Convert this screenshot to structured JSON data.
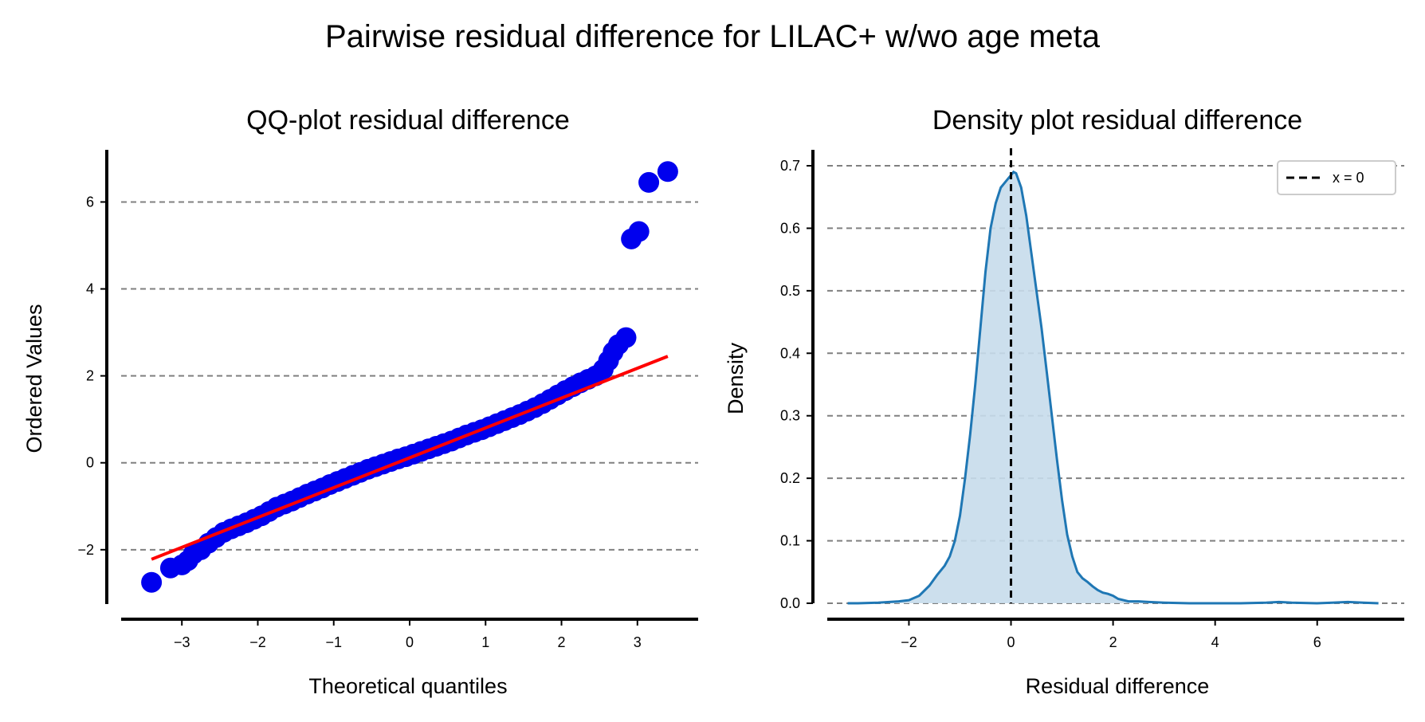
{
  "figure": {
    "suptitle": "Pairwise residual difference for LILAC+ w/wo age meta"
  },
  "chart_data": [
    {
      "type": "scatter",
      "title": "QQ-plot residual difference",
      "xlabel": "Theoretical quantiles",
      "ylabel": "Ordered Values",
      "xlim": [
        -3.8,
        3.8
      ],
      "ylim": [
        -3.25,
        7.2
      ],
      "xticks": [
        -3,
        -2,
        -1,
        0,
        1,
        2,
        3
      ],
      "yticks": [
        -2,
        0,
        2,
        4,
        6
      ],
      "xtick_labels": [
        "−3",
        "−2",
        "−1",
        "0",
        "1",
        "2",
        "3"
      ],
      "ytick_labels": [
        "−2",
        "0",
        "2",
        "4",
        "6"
      ],
      "grid": "y, dashed",
      "colors": {
        "points": "#0000ee",
        "fit_line": "#ff0000",
        "grid": "#808080"
      },
      "fit_line": {
        "x": [
          -3.4,
          3.4
        ],
        "y": [
          -2.22,
          2.45
        ]
      },
      "series": [
        {
          "values": [
            [
              -3.4,
              -2.75
            ],
            [
              -3.15,
              -2.42
            ],
            [
              -3.0,
              -2.35
            ],
            [
              -2.92,
              -2.25
            ],
            [
              -2.85,
              -2.1
            ],
            [
              -2.75,
              -2.0
            ],
            [
              -2.65,
              -1.85
            ],
            [
              -2.55,
              -1.72
            ],
            [
              -2.45,
              -1.6
            ],
            [
              -2.35,
              -1.52
            ],
            [
              -2.25,
              -1.45
            ],
            [
              -2.15,
              -1.38
            ],
            [
              -2.05,
              -1.3
            ],
            [
              -1.95,
              -1.22
            ],
            [
              -1.85,
              -1.12
            ],
            [
              -1.75,
              -1.02
            ],
            [
              -1.65,
              -0.95
            ],
            [
              -1.55,
              -0.88
            ],
            [
              -1.45,
              -0.8
            ],
            [
              -1.35,
              -0.72
            ],
            [
              -1.25,
              -0.65
            ],
            [
              -1.15,
              -0.58
            ],
            [
              -1.05,
              -0.5
            ],
            [
              -0.95,
              -0.43
            ],
            [
              -0.85,
              -0.36
            ],
            [
              -0.75,
              -0.29
            ],
            [
              -0.65,
              -0.22
            ],
            [
              -0.55,
              -0.15
            ],
            [
              -0.45,
              -0.09
            ],
            [
              -0.35,
              -0.03
            ],
            [
              -0.25,
              0.03
            ],
            [
              -0.15,
              0.09
            ],
            [
              -0.05,
              0.14
            ],
            [
              0.05,
              0.2
            ],
            [
              0.15,
              0.26
            ],
            [
              0.25,
              0.32
            ],
            [
              0.35,
              0.38
            ],
            [
              0.45,
              0.44
            ],
            [
              0.55,
              0.5
            ],
            [
              0.65,
              0.57
            ],
            [
              0.75,
              0.64
            ],
            [
              0.85,
              0.7
            ],
            [
              0.95,
              0.76
            ],
            [
              1.05,
              0.83
            ],
            [
              1.15,
              0.9
            ],
            [
              1.25,
              0.97
            ],
            [
              1.35,
              1.04
            ],
            [
              1.45,
              1.11
            ],
            [
              1.55,
              1.19
            ],
            [
              1.65,
              1.27
            ],
            [
              1.75,
              1.36
            ],
            [
              1.85,
              1.46
            ],
            [
              1.95,
              1.56
            ],
            [
              2.05,
              1.66
            ],
            [
              2.15,
              1.75
            ],
            [
              2.25,
              1.84
            ],
            [
              2.35,
              1.92
            ],
            [
              2.45,
              2.0
            ],
            [
              2.55,
              2.15
            ],
            [
              2.62,
              2.35
            ],
            [
              2.68,
              2.55
            ],
            [
              2.75,
              2.72
            ],
            [
              2.85,
              2.88
            ],
            [
              2.92,
              5.15
            ],
            [
              3.02,
              5.32
            ],
            [
              3.15,
              6.45
            ],
            [
              3.4,
              6.7
            ]
          ]
        }
      ]
    },
    {
      "type": "area",
      "title": "Density plot residual difference",
      "xlabel": "Residual difference",
      "ylabel": "Density",
      "xlim": [
        -3.6,
        7.8
      ],
      "ylim": [
        0,
        0.7
      ],
      "xticks": [
        -2,
        0,
        2,
        4,
        6
      ],
      "yticks": [
        0.0,
        0.1,
        0.2,
        0.3,
        0.4,
        0.5,
        0.6,
        0.7
      ],
      "xtick_labels": [
        "−2",
        "0",
        "2",
        "4",
        "6"
      ],
      "ytick_labels": [
        "0.0",
        "0.1",
        "0.2",
        "0.3",
        "0.4",
        "0.5",
        "0.6",
        "0.7"
      ],
      "grid": "y, dashed",
      "legend": {
        "position": "top-right",
        "entries": [
          "x = 0"
        ]
      },
      "vline": {
        "x": 0,
        "label": "x = 0"
      },
      "colors": {
        "line": "#1f77b4",
        "fill": "#c6dbeb",
        "vline": "#000000",
        "grid": "#808080"
      },
      "x": [
        -3.2,
        -3.0,
        -2.6,
        -2.2,
        -2.0,
        -1.8,
        -1.6,
        -1.45,
        -1.3,
        -1.2,
        -1.1,
        -1.0,
        -0.9,
        -0.8,
        -0.7,
        -0.6,
        -0.5,
        -0.4,
        -0.3,
        -0.2,
        -0.1,
        0.0,
        0.05,
        0.1,
        0.2,
        0.3,
        0.4,
        0.5,
        0.6,
        0.7,
        0.8,
        0.9,
        1.0,
        1.1,
        1.2,
        1.3,
        1.4,
        1.5,
        1.6,
        1.7,
        1.8,
        1.9,
        2.0,
        2.1,
        2.3,
        2.5,
        2.7,
        3.0,
        3.5,
        4.0,
        4.5,
        5.0,
        5.25,
        5.5,
        6.0,
        6.3,
        6.6,
        6.9,
        7.2
      ],
      "y": [
        0.0,
        0.0,
        0.001,
        0.003,
        0.005,
        0.012,
        0.028,
        0.045,
        0.06,
        0.075,
        0.1,
        0.14,
        0.2,
        0.27,
        0.35,
        0.44,
        0.53,
        0.6,
        0.64,
        0.665,
        0.675,
        0.685,
        0.69,
        0.688,
        0.665,
        0.62,
        0.56,
        0.5,
        0.44,
        0.37,
        0.3,
        0.23,
        0.165,
        0.11,
        0.075,
        0.05,
        0.04,
        0.034,
        0.027,
        0.021,
        0.017,
        0.015,
        0.012,
        0.007,
        0.003,
        0.003,
        0.002,
        0.001,
        0.0,
        0.0,
        0.0,
        0.001,
        0.002,
        0.001,
        0.0,
        0.001,
        0.002,
        0.001,
        0.0
      ]
    }
  ]
}
